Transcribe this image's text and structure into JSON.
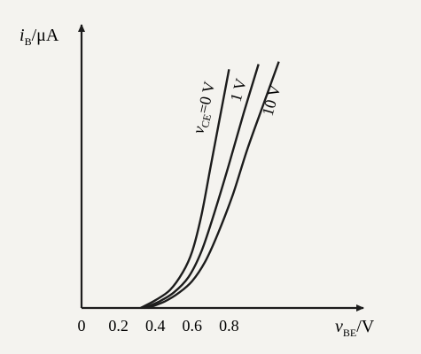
{
  "chart_data": {
    "type": "line",
    "title": "",
    "xlabel": {
      "var": "v",
      "sub": "BE",
      "unit": "/V"
    },
    "ylabel": {
      "var": "i",
      "sub": "B",
      "unit": "/μA"
    },
    "x_ticks": [
      "0",
      "0.2",
      "0.4",
      "0.6",
      "0.8"
    ],
    "x_tick_values": [
      0,
      0.2,
      0.4,
      0.6,
      0.8
    ],
    "xlim": [
      0,
      1.35
    ],
    "ylim": [
      0,
      100
    ],
    "grid": false,
    "series": [
      {
        "name": "v_CE=0 V",
        "label_parts": {
          "var": "v",
          "sub": "CE",
          "rest": "=0 V"
        },
        "x": [
          0.32,
          0.4,
          0.48,
          0.55,
          0.6,
          0.65,
          0.7,
          0.75,
          0.8
        ],
        "y": [
          0,
          3,
          7,
          14,
          22,
          36,
          55,
          74,
          93
        ]
      },
      {
        "name": "1 V",
        "label_parts": {
          "var": "",
          "sub": "",
          "rest": "1 V"
        },
        "x": [
          0.34,
          0.42,
          0.5,
          0.58,
          0.65,
          0.72,
          0.8,
          0.88,
          0.96
        ],
        "y": [
          0,
          2.5,
          6,
          12,
          22,
          37,
          56,
          76,
          95
        ]
      },
      {
        "name": "10 V",
        "label_parts": {
          "var": "",
          "sub": "",
          "rest": "10 V"
        },
        "x": [
          0.36,
          0.45,
          0.53,
          0.6,
          0.67,
          0.74,
          0.82,
          0.9,
          0.99,
          1.07
        ],
        "y": [
          0,
          2.5,
          6,
          10.5,
          18,
          29,
          44,
          62,
          80,
          96
        ]
      }
    ]
  }
}
